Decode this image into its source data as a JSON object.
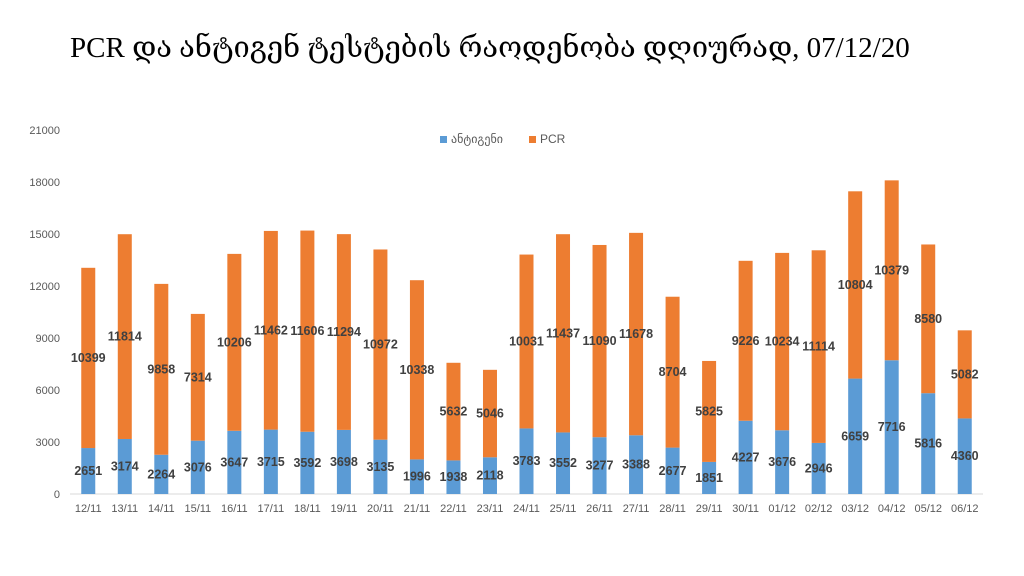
{
  "page": {
    "title": "PCR და ანტიგენ ტესტების რაოდენობა დღიურად, 07/12/20"
  },
  "chart_data": {
    "type": "bar",
    "stacked": true,
    "title": "PCR და ანტიგენ ტესტების რაოდენობა დღიურად, 07/12/20",
    "xlabel": "",
    "ylabel": "",
    "ylim": [
      0,
      21000
    ],
    "yticks": [
      0,
      3000,
      6000,
      9000,
      12000,
      15000,
      18000,
      21000
    ],
    "grid": false,
    "legend_position": "top-center",
    "categories": [
      "12/11",
      "13/11",
      "14/11",
      "15/11",
      "16/11",
      "17/11",
      "18/11",
      "19/11",
      "20/11",
      "21/11",
      "22/11",
      "23/11",
      "24/11",
      "25/11",
      "26/11",
      "27/11",
      "28/11",
      "29/11",
      "30/11",
      "01/12",
      "02/12",
      "03/12",
      "04/12",
      "05/12",
      "06/12"
    ],
    "series": [
      {
        "name": "ანტიგენი",
        "color": "#5B9BD5",
        "values": [
          2651,
          3174,
          2264,
          3076,
          3647,
          3715,
          3592,
          3698,
          3135,
          1996,
          1938,
          2118,
          3783,
          3552,
          3277,
          3388,
          2677,
          1851,
          4227,
          3676,
          2946,
          6659,
          7716,
          5816,
          4360
        ]
      },
      {
        "name": "PCR",
        "color": "#ED7D31",
        "values": [
          10399,
          11814,
          9858,
          7314,
          10206,
          11462,
          11606,
          11294,
          10972,
          10338,
          5632,
          5046,
          10031,
          11437,
          11090,
          11678,
          8704,
          5825,
          9226,
          10234,
          11114,
          10804,
          10379,
          8580,
          5082
        ]
      }
    ]
  }
}
